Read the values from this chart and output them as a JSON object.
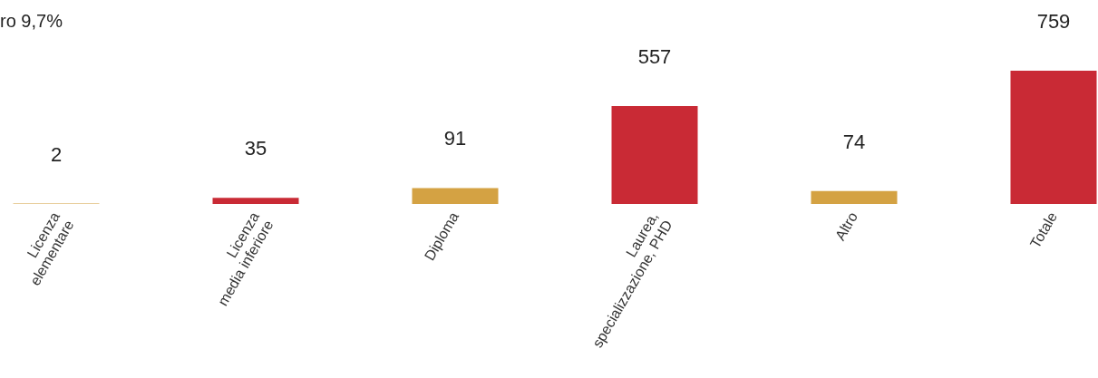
{
  "chart_data": {
    "type": "bar",
    "categories": [
      "Licenza elementare",
      "Licenza media inferiore",
      "Diploma",
      "Laurea, specializzazione, PHD",
      "Altro",
      "Totale"
    ],
    "values": [
      2,
      35,
      91,
      557,
      74,
      759
    ],
    "colors": [
      "#d4a243",
      "#c92a35",
      "#d4a243",
      "#c92a35",
      "#d4a243",
      "#c92a35"
    ],
    "data_labels": true,
    "annotations": [
      "ro 9,7%"
    ]
  }
}
